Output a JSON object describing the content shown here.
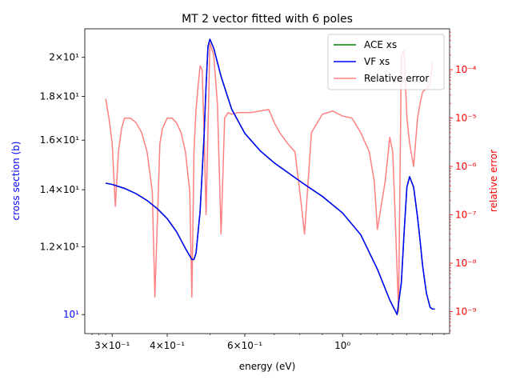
{
  "chart_data": {
    "type": "line",
    "title": "MT 2 vector fitted with 6 poles",
    "xlabel": "energy (eV)",
    "ylabel_left": "cross section (b)",
    "ylabel_right": "relative error",
    "x_scale": "log",
    "y_scale_left": "log",
    "y_scale_right": "log",
    "xlim": [
      0.26,
      1.75
    ],
    "ylim_left": [
      9.5,
      21.6
    ],
    "ylim_right": [
      3.5e-10,
      0.0007
    ],
    "x_ticks": [
      {
        "value": 0.3,
        "label": "3×10⁻¹"
      },
      {
        "value": 0.4,
        "label": "4×10⁻¹"
      },
      {
        "value": 0.6,
        "label": "6×10⁻¹"
      },
      {
        "value": 1.0,
        "label": "10⁰"
      }
    ],
    "y_ticks_left": [
      {
        "value": 10,
        "label": "10¹"
      },
      {
        "value": 12,
        "label": "1.2×10¹"
      },
      {
        "value": 14,
        "label": "1.4×10¹"
      },
      {
        "value": 16,
        "label": "1.6×10¹"
      },
      {
        "value": 18,
        "label": "1.8×10¹"
      },
      {
        "value": 20,
        "label": "2×10¹"
      }
    ],
    "y_ticks_right": [
      {
        "value": 1e-09,
        "label": "10⁻⁹"
      },
      {
        "value": 1e-08,
        "label": "10⁻⁸"
      },
      {
        "value": 1e-07,
        "label": "10⁻⁷"
      },
      {
        "value": 1e-06,
        "label": "10⁻⁶"
      },
      {
        "value": 1e-05,
        "label": "10⁻⁵"
      },
      {
        "value": 0.0001,
        "label": "10⁻⁴"
      }
    ],
    "legend": {
      "placement": "upper right",
      "entries": [
        {
          "label": "ACE xs",
          "color": "#008000"
        },
        {
          "label": "VF xs",
          "color": "#0000ff"
        },
        {
          "label": "Relative error",
          "color": "#ff8080"
        }
      ]
    },
    "series": [
      {
        "name": "ACE xs",
        "axis": "left",
        "color": "#008000",
        "x": [
          0.29,
          0.3,
          0.32,
          0.34,
          0.36,
          0.38,
          0.4,
          0.42,
          0.44,
          0.455,
          0.46,
          0.465,
          0.475,
          0.485,
          0.49,
          0.495,
          0.5,
          0.51,
          0.53,
          0.56,
          0.6,
          0.65,
          0.7,
          0.76,
          0.82,
          0.9,
          1.0,
          1.1,
          1.2,
          1.28,
          1.33,
          1.36,
          1.38,
          1.4,
          1.42,
          1.45,
          1.48,
          1.5,
          1.52,
          1.55,
          1.58,
          1.6,
          1.62
        ],
        "y": [
          14.25,
          14.2,
          14.05,
          13.85,
          13.6,
          13.3,
          12.95,
          12.5,
          11.95,
          11.6,
          11.6,
          11.8,
          13.2,
          16.2,
          18.5,
          20.6,
          21.0,
          20.5,
          19.0,
          17.4,
          16.3,
          15.55,
          15.05,
          14.6,
          14.2,
          13.75,
          13.15,
          12.4,
          11.3,
          10.4,
          10.0,
          10.9,
          12.5,
          14.1,
          14.5,
          14.1,
          13.0,
          12.2,
          11.4,
          10.6,
          10.2,
          10.15,
          10.15
        ]
      },
      {
        "name": "VF xs",
        "axis": "left",
        "color": "#0000ff",
        "x": [
          0.29,
          0.3,
          0.32,
          0.34,
          0.36,
          0.38,
          0.4,
          0.42,
          0.44,
          0.455,
          0.46,
          0.465,
          0.475,
          0.485,
          0.49,
          0.495,
          0.5,
          0.51,
          0.53,
          0.56,
          0.6,
          0.65,
          0.7,
          0.76,
          0.82,
          0.9,
          1.0,
          1.1,
          1.2,
          1.28,
          1.33,
          1.36,
          1.38,
          1.4,
          1.42,
          1.45,
          1.48,
          1.5,
          1.52,
          1.55,
          1.58,
          1.6,
          1.62
        ],
        "y": [
          14.25,
          14.2,
          14.05,
          13.85,
          13.6,
          13.3,
          12.95,
          12.5,
          11.95,
          11.6,
          11.6,
          11.8,
          13.2,
          16.2,
          18.5,
          20.6,
          21.0,
          20.5,
          19.0,
          17.4,
          16.3,
          15.55,
          15.05,
          14.6,
          14.2,
          13.75,
          13.15,
          12.4,
          11.3,
          10.4,
          10.0,
          10.9,
          12.5,
          14.1,
          14.5,
          14.1,
          13.0,
          12.2,
          11.4,
          10.6,
          10.2,
          10.15,
          10.15
        ]
      },
      {
        "name": "Relative error",
        "axis": "right",
        "color": "#ff8080",
        "x": [
          0.29,
          0.295,
          0.3,
          0.305,
          0.31,
          0.315,
          0.32,
          0.33,
          0.34,
          0.35,
          0.36,
          0.37,
          0.375,
          0.38,
          0.385,
          0.39,
          0.4,
          0.41,
          0.42,
          0.43,
          0.44,
          0.45,
          0.455,
          0.46,
          0.465,
          0.47,
          0.475,
          0.48,
          0.485,
          0.49,
          0.5,
          0.51,
          0.52,
          0.53,
          0.54,
          0.55,
          0.56,
          0.58,
          0.6,
          0.62,
          0.65,
          0.68,
          0.7,
          0.72,
          0.75,
          0.78,
          0.8,
          0.82,
          0.85,
          0.9,
          0.95,
          1.0,
          1.05,
          1.1,
          1.15,
          1.18,
          1.2,
          1.25,
          1.28,
          1.3,
          1.32,
          1.34,
          1.36,
          1.38,
          1.4,
          1.42,
          1.45,
          1.48,
          1.5,
          1.52,
          1.55,
          1.58,
          1.6
        ],
        "y": [
          2.5e-05,
          1e-05,
          3e-06,
          1.5e-07,
          2e-06,
          6e-06,
          1e-05,
          1e-05,
          8e-06,
          5e-06,
          2e-06,
          3e-07,
          2e-09,
          8e-08,
          3e-06,
          6e-06,
          1e-05,
          1e-05,
          8e-06,
          5e-06,
          2e-06,
          3e-07,
          2e-09,
          2e-06,
          1.5e-05,
          4.5e-05,
          0.00012,
          0.0001,
          5e-06,
          1e-07,
          0.00035,
          0.0002,
          2e-05,
          4e-08,
          1e-05,
          1.3e-05,
          1.2e-05,
          1.3e-05,
          1.3e-05,
          1.3e-05,
          1.4e-05,
          1.5e-05,
          8e-06,
          5e-06,
          3e-06,
          2e-06,
          3e-07,
          4e-08,
          5e-06,
          1.2e-05,
          1.4e-05,
          1.1e-05,
          1e-05,
          5e-06,
          2e-06,
          5e-07,
          5e-08,
          5e-07,
          4e-06,
          2e-06,
          5e-08,
          1e-09,
          0.0002,
          0.00025,
          1e-05,
          3e-06,
          1e-06,
          1e-05,
          2e-05,
          3.5e-05,
          4e-05,
          5e-05,
          0.00015
        ]
      }
    ]
  }
}
